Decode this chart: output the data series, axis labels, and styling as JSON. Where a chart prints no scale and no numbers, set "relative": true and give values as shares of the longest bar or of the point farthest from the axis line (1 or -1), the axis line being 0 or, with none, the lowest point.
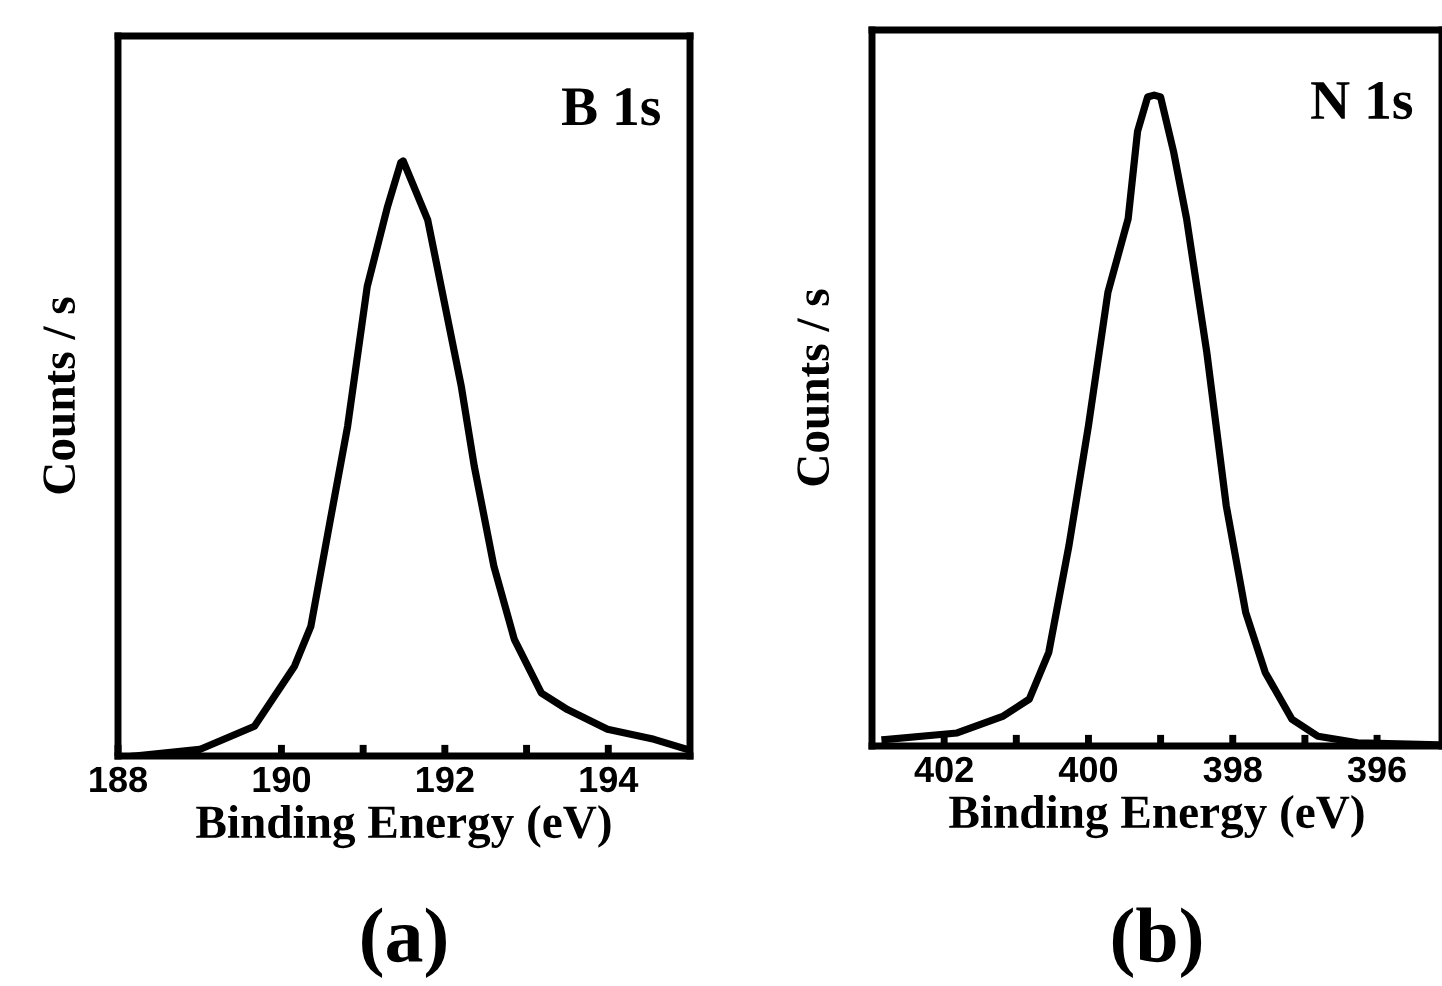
{
  "chart_data": [
    {
      "type": "line",
      "relative": true,
      "xlabel": "Binding Energy (eV)",
      "ylabel": "Counts / s",
      "annotations": [
        "B 1s",
        "(a)"
      ],
      "xlim": [
        188,
        195
      ],
      "xticks": [
        188,
        190,
        {
          "value": 191,
          "label": null
        },
        192,
        {
          "value": 193,
          "label": null
        },
        194
      ],
      "tick_labels": "x",
      "grid": false,
      "series": [
        {
          "color": "#000000",
          "x": [
            188.2,
            189.0,
            189.67,
            190.16,
            190.36,
            190.6,
            190.81,
            191.05,
            191.3,
            191.46,
            191.49,
            191.79,
            192.2,
            192.36,
            192.6,
            192.85,
            193.18,
            193.5,
            193.99,
            194.56,
            194.97
          ],
          "values": [
            0.0,
            0.011,
            0.05,
            0.151,
            0.218,
            0.398,
            0.554,
            0.789,
            0.924,
            0.997,
            1.0,
            0.901,
            0.622,
            0.487,
            0.319,
            0.196,
            0.106,
            0.078,
            0.045,
            0.028,
            0.011
          ]
        }
      ]
    },
    {
      "type": "line",
      "relative": true,
      "xlabel": "Binding Energy (eV)",
      "ylabel": "Counts / s",
      "annotations": [
        "N 1s",
        "(b)"
      ],
      "xlim": [
        403,
        395.1
      ],
      "xticks": [
        402,
        {
          "value": 401,
          "label": null
        },
        400,
        {
          "value": 399,
          "label": null
        },
        398,
        {
          "value": 397,
          "label": null
        },
        396
      ],
      "tick_labels": "x",
      "grid": false,
      "series": [
        {
          "color": "#000000",
          "x": [
            402.82,
            401.82,
            401.18,
            400.82,
            400.55,
            400.27,
            400.0,
            399.73,
            399.45,
            399.32,
            399.18,
            399.09,
            399.0,
            398.82,
            398.64,
            398.36,
            398.09,
            397.82,
            397.55,
            397.18,
            396.82,
            396.27,
            395.18
          ],
          "values": [
            0.01,
            0.02,
            0.046,
            0.072,
            0.144,
            0.308,
            0.492,
            0.697,
            0.81,
            0.944,
            0.997,
            1.0,
            0.997,
            0.913,
            0.81,
            0.605,
            0.369,
            0.205,
            0.113,
            0.041,
            0.015,
            0.005,
            0.002
          ]
        }
      ]
    }
  ]
}
